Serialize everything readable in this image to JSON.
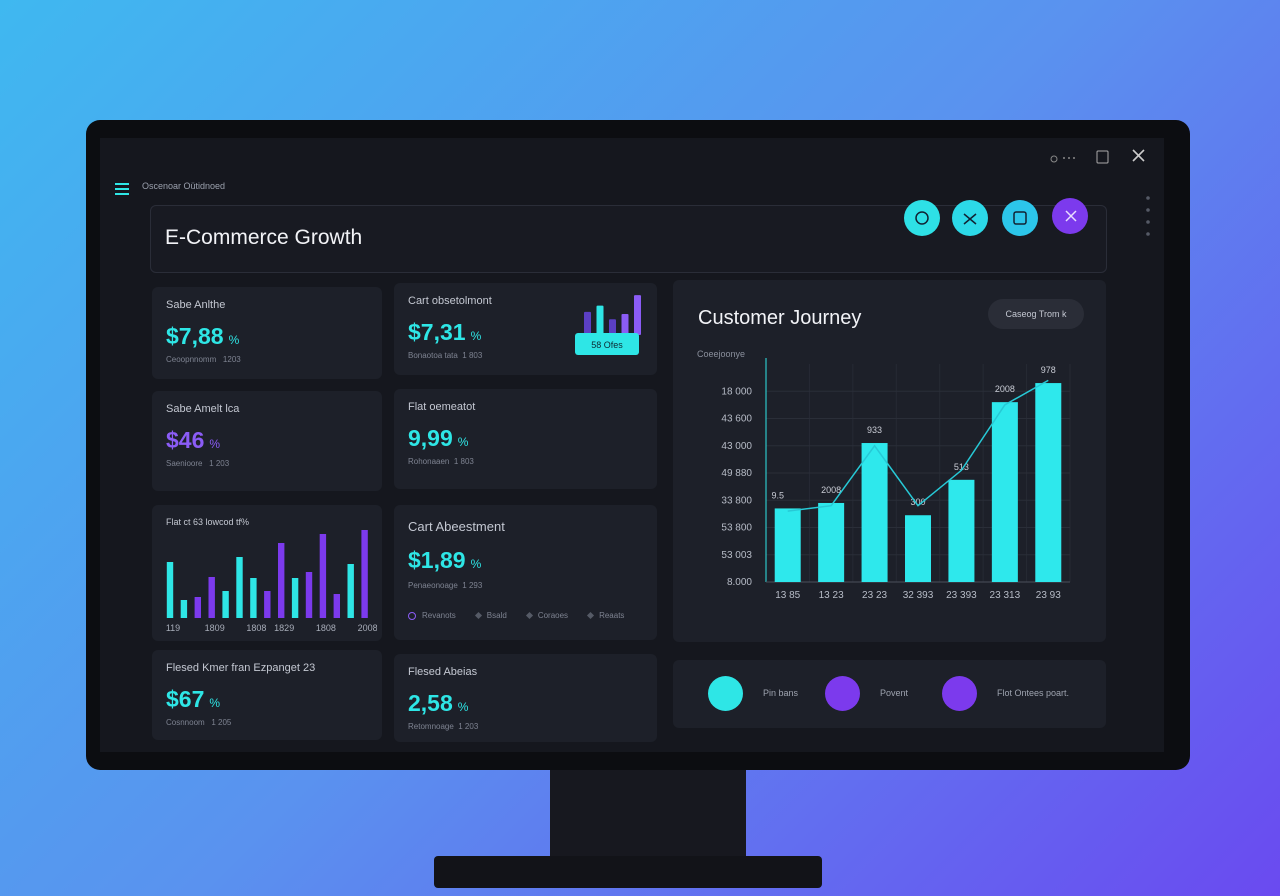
{
  "header": {
    "breadcrumb": "Oscenoar Oütidnoed",
    "title": "E-Commerce Growth"
  },
  "cards": [
    {
      "label": "Sabe Anlthe",
      "value": "$7,88",
      "unit": "%",
      "note": "Ceoopnnomm   1203",
      "color": "#2ee6e6"
    },
    {
      "label": "Cart obsetolmont",
      "value": "$7,31",
      "unit": "%",
      "note": "Bonaotoa tata  1 803",
      "color": "#2ee6e6"
    },
    {
      "label": "Sabe Amelt lca",
      "value": "$46",
      "unit": "%",
      "note": "Saenioore   1 203",
      "color": "#8b5cf6"
    },
    {
      "label": "Flat oemeatot",
      "value": "9,99",
      "unit": "%",
      "note": "Rohonaaen  1 803",
      "color": "#2ee6e6"
    },
    {
      "label": "Cart Abeestment",
      "value": "$1,89",
      "unit": "%",
      "note": "Penaeonoage  1 293",
      "color": "#2ee6e6"
    },
    {
      "label": "Flesed Kmer fran Ezpanget 23",
      "value": "$67",
      "unit": "%",
      "note": "Cosnnoom   1 205",
      "color": "#2ee6e6"
    },
    {
      "label": "Flesed Abeias",
      "value": "2,58",
      "unit": "%",
      "note": "Retomnoage  1 203",
      "color": "#2ee6e6"
    }
  ],
  "legend_items": [
    "Revanots",
    "Bsald",
    "Coraoes",
    "Reaats"
  ],
  "journey_button": "Caseog Trom k",
  "actions": [
    "Pin bans",
    "Povent",
    "Flot Ontees poart."
  ],
  "chart_data": [
    {
      "type": "bar",
      "badge": "58 Ofes",
      "values": [
        22,
        28,
        15,
        20,
        38
      ],
      "colors": [
        "#5b3fc4",
        "#2ee6e6",
        "#5b3fc4",
        "#8b5cf6",
        "#8b5cf6"
      ],
      "ylim": [
        0,
        40
      ]
    },
    {
      "type": "bar",
      "title": "Flat ct 63 lowcod tf%",
      "categories": [
        "119",
        null,
        null,
        "1809",
        null,
        null,
        "1808",
        null,
        "1829",
        null,
        null,
        "1808",
        null,
        null,
        "2008"
      ],
      "values": [
        56,
        18,
        21,
        41,
        27,
        61,
        40,
        27,
        75,
        40,
        46,
        84,
        24,
        54,
        88
      ],
      "colors": [
        "#2ee6e6",
        "#2ee6e6",
        "#7c3aed",
        "#7c3aed",
        "#2ee6e6",
        "#2ee6e6",
        "#2ee6e6",
        "#7c3aed",
        "#7c3aed",
        "#2ee6e6",
        "#7c3aed",
        "#7c3aed",
        "#7c3aed",
        "#2ee6e6",
        "#7c3aed"
      ],
      "ylim": [
        0,
        100
      ]
    },
    {
      "type": "bar",
      "title": "Customer Journey",
      "y_label": "Coeejoonye",
      "categories": [
        "13 85",
        "13 23",
        "23 23",
        "32 393",
        "23 393",
        "23 313",
        "23 93"
      ],
      "series": [
        {
          "type": "bar",
          "color": "#2ee8ec",
          "values": [
            2.7,
            2.9,
            5.1,
            2.45,
            3.75,
            6.6,
            7.3
          ]
        },
        {
          "type": "line",
          "color": "#27c9d6",
          "values": [
            2.6,
            2.8,
            5.0,
            2.8,
            4.1,
            6.5,
            7.4
          ]
        }
      ],
      "annotations": [
        "9.5",
        "2008",
        "933",
        "300",
        "513",
        "2008",
        "978"
      ],
      "ylim": [
        0,
        8
      ],
      "yticks": [
        {
          "value": 0,
          "label": "8.000"
        },
        {
          "value": 1,
          "label": "53 003"
        },
        {
          "value": 2,
          "label": "53 800"
        },
        {
          "value": 3,
          "label": "33 800"
        },
        {
          "value": 4,
          "label": "49 880"
        },
        {
          "value": 5,
          "label": "43 000"
        },
        {
          "value": 6,
          "label": "43 600"
        },
        {
          "value": 7,
          "label": "18 000"
        }
      ],
      "grid": true
    }
  ]
}
